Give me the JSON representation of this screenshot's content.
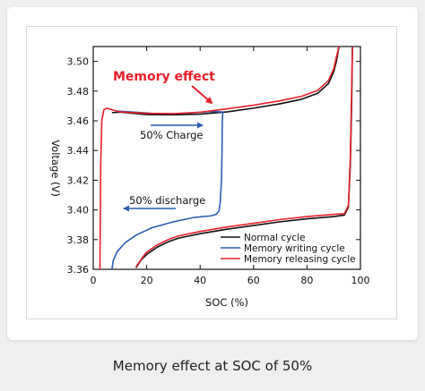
{
  "caption": "Memory effect at SOC of 50%",
  "colors": {
    "normal": "#111111",
    "writing": "#2a5db0",
    "releasing": "#e8202a",
    "annotation_red": "#e8202a",
    "annotation_blue": "#2a5db0"
  },
  "chart_data": {
    "type": "line",
    "title": "",
    "xlabel": "SOC (%)",
    "ylabel": "Voltage (V)",
    "xlim": [
      0,
      100
    ],
    "ylim": [
      3.36,
      3.51
    ],
    "xticks": [
      "0",
      "20",
      "40",
      "60",
      "80",
      "100"
    ],
    "yticks": [
      "3.36",
      "3.38",
      "3.40",
      "3.42",
      "3.44",
      "3.46",
      "3.48",
      "3.50"
    ],
    "grid": false,
    "legend_position": "bottom-right",
    "annotations": {
      "memory_effect": "Memory effect",
      "charge": "50% Charge",
      "discharge": "50% discharge"
    },
    "series": [
      {
        "name": "Normal cycle",
        "key": "normal",
        "points": [
          [
            16,
            3.361
          ],
          [
            18,
            3.3665
          ],
          [
            20,
            3.37
          ],
          [
            24,
            3.375
          ],
          [
            28,
            3.3785
          ],
          [
            32,
            3.381
          ],
          [
            40,
            3.384
          ],
          [
            50,
            3.387
          ],
          [
            60,
            3.3895
          ],
          [
            70,
            3.392
          ],
          [
            80,
            3.394
          ],
          [
            90,
            3.3955
          ],
          [
            94,
            3.3965
          ],
          [
            95.5,
            3.402
          ],
          [
            96.2,
            3.43
          ],
          [
            96.7,
            3.47
          ],
          [
            97,
            3.51
          ],
          null,
          [
            7,
            3.4655
          ],
          [
            10,
            3.4658
          ],
          [
            20,
            3.4642
          ],
          [
            30,
            3.464
          ],
          [
            40,
            3.4645
          ],
          [
            50,
            3.466
          ],
          [
            60,
            3.4685
          ],
          [
            70,
            3.4715
          ],
          [
            78,
            3.4745
          ],
          [
            84,
            3.4785
          ],
          [
            88,
            3.485
          ],
          [
            90,
            3.493
          ],
          [
            91,
            3.5
          ],
          [
            92,
            3.51
          ]
        ]
      },
      {
        "name": "Memory writing cycle",
        "key": "writing",
        "points": [
          [
            7,
            3.36
          ],
          [
            7.5,
            3.366
          ],
          [
            9,
            3.372
          ],
          [
            12,
            3.378
          ],
          [
            16,
            3.383
          ],
          [
            22,
            3.388
          ],
          [
            30,
            3.392
          ],
          [
            38,
            3.395
          ],
          [
            44,
            3.396
          ],
          [
            46,
            3.397
          ],
          [
            47,
            3.399
          ],
          [
            47.5,
            3.405
          ],
          [
            48,
            3.42
          ],
          [
            48.2,
            3.44
          ],
          [
            48.3,
            3.46
          ],
          [
            48.5,
            3.466
          ],
          null,
          [
            48.2,
            3.466
          ],
          [
            44,
            3.4663
          ],
          [
            38,
            3.4655
          ],
          [
            30,
            3.4648
          ],
          [
            22,
            3.465
          ],
          [
            14,
            3.466
          ],
          [
            9,
            3.4665
          ]
        ]
      },
      {
        "name": "Memory releasing cycle",
        "key": "releasing",
        "points": [
          [
            2.5,
            3.36
          ],
          [
            2.8,
            3.43
          ],
          [
            3.2,
            3.46
          ],
          [
            4,
            3.4675
          ],
          [
            5,
            3.4685
          ],
          [
            7,
            3.4675
          ],
          [
            10,
            3.466
          ],
          [
            20,
            3.465
          ],
          [
            30,
            3.4648
          ],
          [
            40,
            3.4658
          ],
          [
            50,
            3.468
          ],
          [
            60,
            3.4705
          ],
          [
            70,
            3.4735
          ],
          [
            78,
            3.4765
          ],
          [
            84,
            3.4805
          ],
          [
            88,
            3.487
          ],
          [
            90,
            3.495
          ],
          [
            91,
            3.503
          ],
          [
            92,
            3.51
          ],
          null,
          [
            16,
            3.3615
          ],
          [
            18,
            3.367
          ],
          [
            20,
            3.3715
          ],
          [
            24,
            3.3765
          ],
          [
            28,
            3.38
          ],
          [
            32,
            3.3825
          ],
          [
            40,
            3.3855
          ],
          [
            50,
            3.3885
          ],
          [
            60,
            3.391
          ],
          [
            70,
            3.3935
          ],
          [
            80,
            3.3955
          ],
          [
            90,
            3.397
          ],
          [
            94,
            3.3975
          ],
          [
            95.5,
            3.403
          ],
          [
            96.2,
            3.435
          ],
          [
            96.6,
            3.47
          ],
          [
            97,
            3.51
          ]
        ]
      }
    ]
  }
}
